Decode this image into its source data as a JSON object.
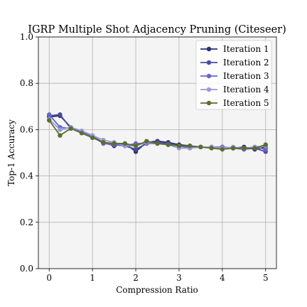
{
  "chart_data": {
    "type": "line",
    "title": "IGRP Multiple Shot Adjacency Pruning (Citeseer)",
    "xlabel": "Compression Ratio",
    "ylabel": "Top-1 Accuracy",
    "xlim": [
      -0.25,
      5.25
    ],
    "ylim": [
      0.0,
      1.0
    ],
    "xticks": [
      0,
      1,
      2,
      3,
      4,
      5
    ],
    "yticks": [
      0.0,
      0.2,
      0.4,
      0.6,
      0.8,
      1.0
    ],
    "xtick_labels": [
      "0",
      "1",
      "2",
      "3",
      "4",
      "5"
    ],
    "ytick_labels": [
      "0.0",
      "0.2",
      "0.4",
      "0.6",
      "0.8",
      "1.0"
    ],
    "grid": true,
    "background": "#f4f4f4",
    "legend_position": "top-right",
    "x": [
      0,
      0.25,
      0.5,
      0.75,
      1.0,
      1.25,
      1.5,
      1.75,
      2.0,
      2.25,
      2.5,
      2.75,
      3.0,
      3.25,
      3.5,
      3.75,
      4.0,
      4.25,
      4.5,
      4.75,
      5.0
    ],
    "series": [
      {
        "name": "Iteration 1",
        "color": "#2e2e6e",
        "values": [
          0.655,
          0.66,
          0.61,
          0.59,
          0.57,
          0.545,
          0.53,
          0.54,
          0.505,
          0.545,
          0.55,
          0.545,
          0.535,
          0.53,
          0.525,
          0.525,
          0.525,
          0.52,
          0.525,
          0.515,
          0.525
        ]
      },
      {
        "name": "Iteration 2",
        "color": "#4b4b9e",
        "values": [
          0.66,
          0.665,
          0.605,
          0.59,
          0.57,
          0.545,
          0.535,
          0.53,
          0.515,
          0.54,
          0.545,
          0.54,
          0.53,
          0.525,
          0.525,
          0.525,
          0.52,
          0.52,
          0.515,
          0.52,
          0.505
        ]
      },
      {
        "name": "Iteration 3",
        "color": "#6868c2",
        "values": [
          0.665,
          0.61,
          0.605,
          0.59,
          0.57,
          0.54,
          0.535,
          0.53,
          0.54,
          0.54,
          0.54,
          0.535,
          0.53,
          0.52,
          0.525,
          0.525,
          0.525,
          0.52,
          0.515,
          0.525,
          0.515
        ]
      },
      {
        "name": "Iteration 4",
        "color": "#9a9adf",
        "values": [
          0.645,
          0.6,
          0.61,
          0.595,
          0.575,
          0.555,
          0.545,
          0.53,
          0.53,
          0.545,
          0.54,
          0.535,
          0.52,
          0.52,
          0.525,
          0.525,
          0.52,
          0.525,
          0.52,
          0.525,
          0.53
        ]
      },
      {
        "name": "Iteration 5",
        "color": "#5a6e2e",
        "values": [
          0.64,
          0.575,
          0.605,
          0.585,
          0.565,
          0.545,
          0.54,
          0.54,
          0.53,
          0.55,
          0.54,
          0.535,
          0.53,
          0.53,
          0.525,
          0.52,
          0.515,
          0.52,
          0.52,
          0.52,
          0.535
        ]
      }
    ]
  }
}
